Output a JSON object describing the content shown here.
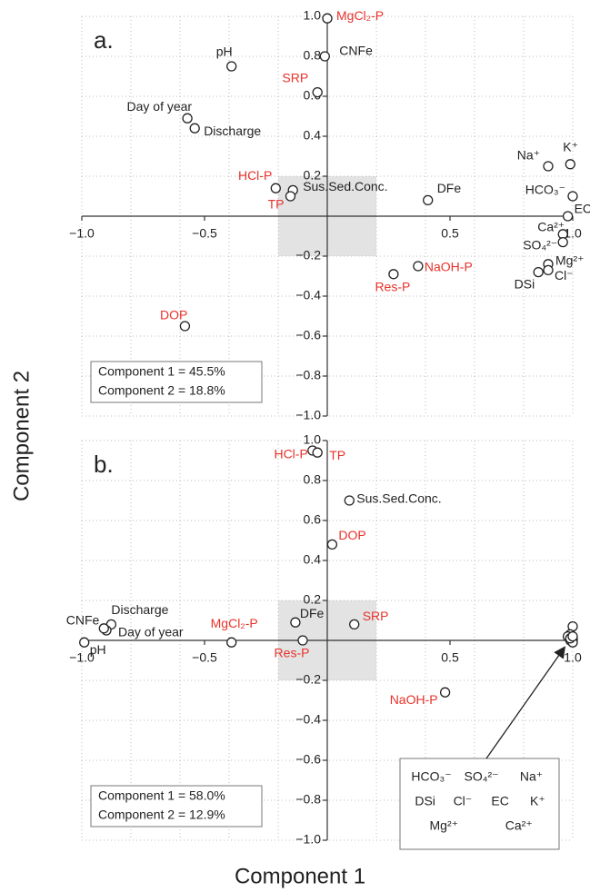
{
  "xlabel": "Component 1",
  "ylabel": "Component 2",
  "chart_data": [
    {
      "type": "scatter",
      "panel_label": "a.",
      "xlim": [
        -1,
        1
      ],
      "ylim": [
        -1,
        1
      ],
      "xticks": [
        {
          "value": -1,
          "label": "−1.0"
        },
        {
          "value": -0.5,
          "label": "−0.5"
        },
        0.5,
        {
          "value": 1,
          "label": "1.0"
        }
      ],
      "xgrid": [
        -1,
        -0.8,
        -0.6,
        -0.4,
        -0.2,
        0.2,
        0.4,
        0.6,
        0.8,
        1
      ],
      "yticks": [
        {
          "value": 1,
          "label": "1.0"
        },
        0.8,
        0.6,
        0.4,
        0.2,
        {
          "value": -0.2,
          "label": "−0.2"
        },
        {
          "value": -0.4,
          "label": "−0.4"
        },
        {
          "value": -0.6,
          "label": "−0.6"
        },
        {
          "value": -0.8,
          "label": "−0.8"
        },
        {
          "value": -1,
          "label": "−1.0"
        }
      ],
      "shaded_xlim": [
        -0.2,
        0.2
      ],
      "shaded_ylim": [
        -0.2,
        0.2
      ],
      "annotations": [
        "Component 1 = 45.5%",
        "Component 2 = 18.8%"
      ],
      "points": [
        {
          "label": "MgCl₂-P",
          "x": 0.0,
          "y": 0.99,
          "color": "#e8322a"
        },
        {
          "label": "CNFe",
          "x": -0.01,
          "y": 0.8,
          "color": "#222222"
        },
        {
          "label": "SRP",
          "x": -0.04,
          "y": 0.62,
          "color": "#e8322a"
        },
        {
          "label": "pH",
          "x": -0.39,
          "y": 0.75,
          "color": "#222222"
        },
        {
          "label": "Day of year",
          "x": -0.57,
          "y": 0.49,
          "color": "#222222"
        },
        {
          "label": "Discharge",
          "x": -0.54,
          "y": 0.44,
          "color": "#222222"
        },
        {
          "label": "HCl-P",
          "x": -0.21,
          "y": 0.14,
          "color": "#e8322a"
        },
        {
          "label": "Sus.Sed.Conc.",
          "x": -0.14,
          "y": 0.13,
          "color": "#222222"
        },
        {
          "label": "TP",
          "x": -0.15,
          "y": 0.1,
          "color": "#e8322a"
        },
        {
          "label": "DFe",
          "x": 0.41,
          "y": 0.08,
          "color": "#222222"
        },
        {
          "label": "Na⁺",
          "x": 0.9,
          "y": 0.25,
          "color": "#222222"
        },
        {
          "label": "K⁺",
          "x": 0.99,
          "y": 0.26,
          "color": "#222222"
        },
        {
          "label": "HCO₃⁻",
          "x": 1.0,
          "y": 0.1,
          "color": "#222222"
        },
        {
          "label": "EC",
          "x": 0.98,
          "y": 0.0,
          "color": "#222222"
        },
        {
          "label": "Ca²⁺",
          "x": 0.96,
          "y": -0.09,
          "color": "#222222"
        },
        {
          "label": "SO₄²⁻",
          "x": 0.96,
          "y": -0.13,
          "color": "#222222"
        },
        {
          "label": "Mg²⁺",
          "x": 0.9,
          "y": -0.24,
          "color": "#222222"
        },
        {
          "label": "Cl⁻",
          "x": 0.9,
          "y": -0.27,
          "color": "#222222"
        },
        {
          "label": "DSi",
          "x": 0.86,
          "y": -0.28,
          "color": "#222222"
        },
        {
          "label": "NaOH-P",
          "x": 0.37,
          "y": -0.25,
          "color": "#e8322a"
        },
        {
          "label": "Res-P",
          "x": 0.27,
          "y": -0.29,
          "color": "#e8322a"
        },
        {
          "label": "DOP",
          "x": -0.58,
          "y": -0.55,
          "color": "#e8322a"
        }
      ]
    },
    {
      "type": "scatter",
      "panel_label": "b.",
      "xlim": [
        -1,
        1
      ],
      "ylim": [
        -1,
        1
      ],
      "xticks": [
        {
          "value": -1,
          "label": "−1.0"
        },
        {
          "value": -0.5,
          "label": "−0.5"
        },
        0.5,
        {
          "value": 1,
          "label": "1.0"
        }
      ],
      "xgrid": [
        -1,
        -0.8,
        -0.6,
        -0.4,
        -0.2,
        0.2,
        0.4,
        0.6,
        0.8,
        1
      ],
      "yticks": [
        {
          "value": 1,
          "label": "1.0"
        },
        0.8,
        0.6,
        0.4,
        0.2,
        {
          "value": -0.2,
          "label": "−0.2"
        },
        {
          "value": -0.4,
          "label": "−0.4"
        },
        {
          "value": -0.6,
          "label": "−0.6"
        },
        {
          "value": -0.8,
          "label": "−0.8"
        },
        {
          "value": -1,
          "label": "−1.0"
        }
      ],
      "shaded_xlim": [
        -0.2,
        0.2
      ],
      "shaded_ylim": [
        -0.2,
        0.2
      ],
      "annotations": [
        "Component 1 = 58.0%",
        "Component 2 = 12.9%"
      ],
      "points": [
        {
          "label": "HCl-P",
          "x": -0.06,
          "y": 0.95,
          "color": "#e8322a"
        },
        {
          "label": "TP",
          "x": -0.04,
          "y": 0.94,
          "color": "#e8322a"
        },
        {
          "label": "Sus.Sed.Conc.",
          "x": 0.09,
          "y": 0.7,
          "color": "#222222"
        },
        {
          "label": "DOP",
          "x": 0.02,
          "y": 0.48,
          "color": "#e8322a"
        },
        {
          "label": "SRP",
          "x": 0.11,
          "y": 0.08,
          "color": "#e8322a"
        },
        {
          "label": "DFe",
          "x": -0.13,
          "y": 0.09,
          "color": "#222222"
        },
        {
          "label": "Res-P",
          "x": -0.1,
          "y": 0.0,
          "color": "#e8322a"
        },
        {
          "label": "MgCl₂-P",
          "x": -0.39,
          "y": -0.01,
          "color": "#e8322a"
        },
        {
          "label": "NaOH-P",
          "x": 0.48,
          "y": -0.26,
          "color": "#e8322a"
        },
        {
          "label": "Discharge",
          "x": -0.88,
          "y": 0.08,
          "color": "#222222"
        },
        {
          "label": "Day of year",
          "x": -0.9,
          "y": 0.05,
          "color": "#222222"
        },
        {
          "label": "CNFe",
          "x": -0.91,
          "y": 0.06,
          "color": "#222222"
        },
        {
          "label": "pH",
          "x": -0.99,
          "y": -0.01,
          "color": "#222222"
        }
      ],
      "cluster_points": [
        {
          "x": 1.0,
          "y": 0.07
        },
        {
          "x": 0.99,
          "y": 0.03
        },
        {
          "x": 1.0,
          "y": 0.01
        },
        {
          "x": 0.98,
          "y": 0.02
        },
        {
          "x": 0.99,
          "y": 0.0
        },
        {
          "x": 1.0,
          "y": 0.0
        },
        {
          "x": 1.0,
          "y": -0.01
        },
        {
          "x": 0.99,
          "y": 0.01
        },
        {
          "x": 1.0,
          "y": 0.02
        }
      ],
      "callout_rows": [
        [
          "HCO₃⁻",
          "SO₄²⁻",
          "Na⁺"
        ],
        [
          "DSi",
          "Cl⁻",
          "EC",
          "K⁺"
        ],
        [
          "Mg²⁺",
          "Ca²⁺"
        ]
      ]
    }
  ]
}
